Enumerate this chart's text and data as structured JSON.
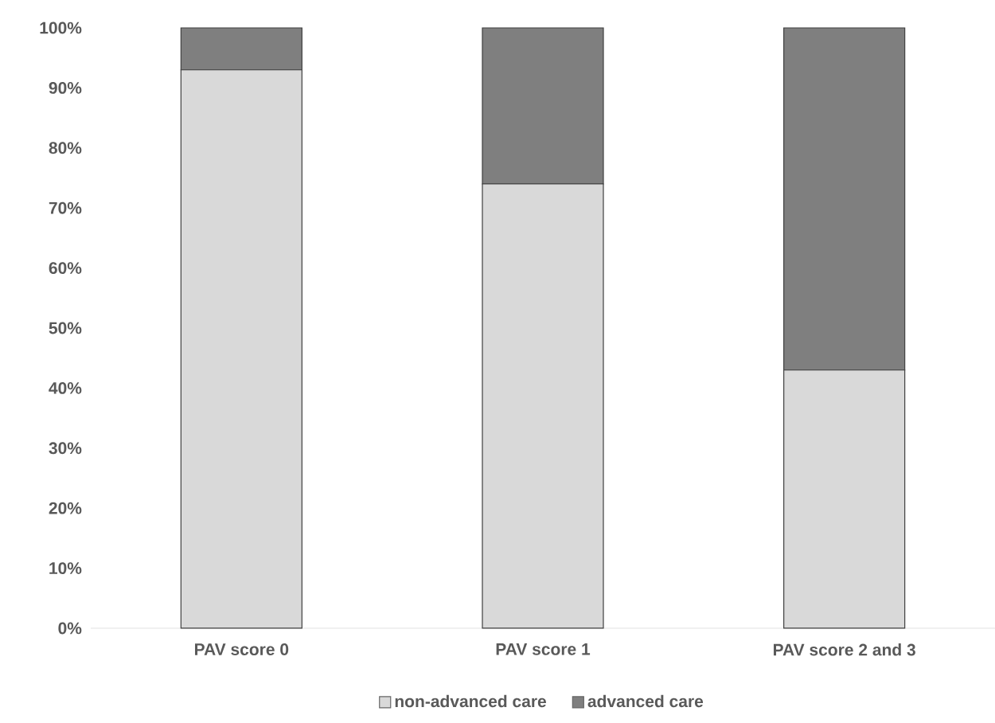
{
  "chart_data": {
    "type": "bar",
    "stacked": true,
    "categories": [
      "PAV score 0",
      "PAV score 1",
      "PAV score 2 and 3"
    ],
    "series": [
      {
        "name": "non-advanced care",
        "color": "#d9d9d9",
        "values": [
          93,
          74,
          43
        ]
      },
      {
        "name": "advanced care",
        "color": "#7f7f7f",
        "values": [
          7,
          26,
          57
        ]
      }
    ],
    "ylim": [
      0,
      100
    ],
    "yticks": [
      {
        "value": 0,
        "label": "0%"
      },
      {
        "value": 10,
        "label": "10%"
      },
      {
        "value": 20,
        "label": "20%"
      },
      {
        "value": 30,
        "label": "30%"
      },
      {
        "value": 40,
        "label": "40%"
      },
      {
        "value": 50,
        "label": "50%"
      },
      {
        "value": 60,
        "label": "60%"
      },
      {
        "value": 70,
        "label": "70%"
      },
      {
        "value": 80,
        "label": "80%"
      },
      {
        "value": 90,
        "label": "90%"
      },
      {
        "value": 100,
        "label": "100%"
      }
    ],
    "legend": "bottom"
  }
}
